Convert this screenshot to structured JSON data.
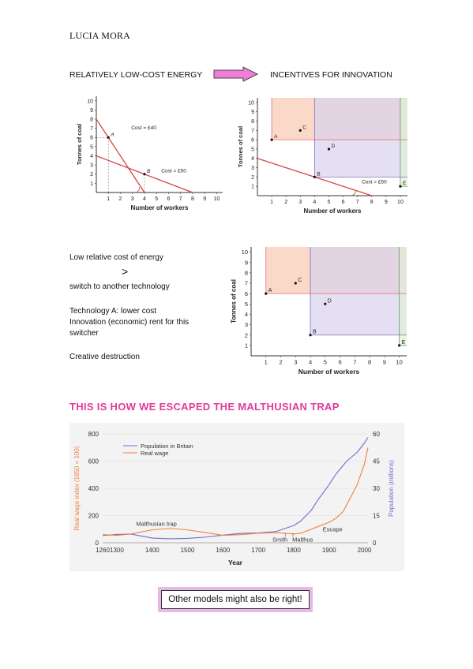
{
  "author": "LUCIA MORA",
  "header": {
    "left_label": "RELATIVELY LOW-COST ENERGY",
    "right_label": "INCENTIVES FOR INNOVATION"
  },
  "notes": {
    "line1": "Low relative cost of energy",
    "symbol": ">",
    "line2": "switch to another technology",
    "line3": "Technology A: lower cost",
    "line4": "Innovation (economic) rent for this",
    "line5": "switcher",
    "line6": "Creative destruction"
  },
  "section_title": "THIS IS HOW WE ESCAPED THE MALTHUSIAN TRAP",
  "callout": "Other models might also be right!",
  "colors": {
    "pink": "#e3399c",
    "arrow": "#f07ed8",
    "isocost": "#d64545",
    "orange_fill": "#f9d2bf",
    "purple_fill": "#d9d2ec",
    "green_fill": "#dff0d6",
    "real_wage": "#f08040",
    "population": "#6f6fd0"
  },
  "chart_data": [
    {
      "type": "line",
      "id": "isocost",
      "xlabel": "Number of workers",
      "ylabel": "Tonnes of coal",
      "xticks": [
        1,
        2,
        3,
        4,
        5,
        6,
        7,
        8,
        9,
        10
      ],
      "yticks": [
        1,
        2,
        3,
        4,
        5,
        6,
        7,
        8,
        9,
        10
      ],
      "xlim": [
        0,
        10.5
      ],
      "ylim": [
        0,
        10.5
      ],
      "lines": [
        {
          "label": "Cost = £40",
          "points": [
            [
              0,
              8
            ],
            [
              4,
              0
            ]
          ]
        },
        {
          "label": "Cost = £50",
          "points": [
            [
              0,
              4
            ],
            [
              8,
              0
            ]
          ]
        }
      ],
      "points": [
        {
          "label": "A",
          "x": 1,
          "y": 6
        },
        {
          "label": "B",
          "x": 4,
          "y": 2
        }
      ]
    },
    {
      "type": "scatter",
      "id": "innovation",
      "xlabel": "Number of workers",
      "ylabel": "Tonnes of coal",
      "xticks": [
        1,
        2,
        3,
        4,
        5,
        6,
        7,
        8,
        9,
        10
      ],
      "yticks": [
        1,
        2,
        3,
        4,
        5,
        6,
        7,
        8,
        9,
        10
      ],
      "xlim": [
        0,
        10.5
      ],
      "ylim": [
        0,
        10.5
      ],
      "line": {
        "label": "Cost = £50",
        "points": [
          [
            0,
            4
          ],
          [
            8,
            0
          ]
        ]
      },
      "points": [
        {
          "label": "A",
          "x": 1,
          "y": 6
        },
        {
          "label": "B",
          "x": 4,
          "y": 2
        },
        {
          "label": "C",
          "x": 3,
          "y": 7
        },
        {
          "label": "D",
          "x": 5,
          "y": 5
        },
        {
          "label": "E",
          "x": 10,
          "y": 1
        }
      ]
    },
    {
      "type": "scatter",
      "id": "dominance",
      "xlabel": "Number of workers",
      "ylabel": "Tonnes of coal",
      "xticks": [
        1,
        2,
        3,
        4,
        5,
        6,
        7,
        8,
        9,
        10
      ],
      "yticks": [
        1,
        2,
        3,
        4,
        5,
        6,
        7,
        8,
        9,
        10
      ],
      "xlim": [
        0,
        10.5
      ],
      "ylim": [
        0,
        10.5
      ],
      "points": [
        {
          "label": "A",
          "x": 1,
          "y": 6
        },
        {
          "label": "B",
          "x": 4,
          "y": 2
        },
        {
          "label": "C",
          "x": 3,
          "y": 7
        },
        {
          "label": "D",
          "x": 5,
          "y": 5
        },
        {
          "label": "E",
          "x": 10,
          "y": 1
        }
      ]
    },
    {
      "type": "line",
      "id": "malthus",
      "xlabel": "Year",
      "ylabel": "Real wage index (1850 = 100)",
      "y2label": "Population (millions)",
      "xlim": [
        1260,
        2010
      ],
      "ylim": [
        0,
        800
      ],
      "y2lim": [
        0,
        60
      ],
      "xticks": [
        1260,
        1300,
        1400,
        1500,
        1600,
        1700,
        1800,
        1900,
        2000
      ],
      "yticks": [
        0,
        200,
        400,
        600,
        800
      ],
      "y2ticks": [
        0,
        15,
        30,
        45,
        60
      ],
      "legend": "top-left",
      "annotations": [
        "Malthusian trap",
        "Smith",
        "Malthus",
        "Escape"
      ],
      "series": [
        {
          "name": "Population in Britain",
          "axis": "right",
          "x": [
            1260,
            1300,
            1340,
            1400,
            1450,
            1500,
            1550,
            1600,
            1650,
            1700,
            1750,
            1800,
            1820,
            1850,
            1870,
            1900,
            1920,
            1950,
            1980,
            2000,
            2010
          ],
          "y": [
            4.0,
            4.6,
            4.8,
            2.6,
            2.2,
            2.4,
            3.1,
            4.2,
            5.2,
            5.4,
            6.2,
            9.5,
            12,
            18,
            24,
            32,
            38,
            45,
            50,
            55,
            58
          ]
        },
        {
          "name": "Real wage",
          "axis": "left",
          "x": [
            1260,
            1300,
            1340,
            1400,
            1450,
            1500,
            1550,
            1600,
            1650,
            1700,
            1750,
            1800,
            1820,
            1850,
            1870,
            1900,
            1920,
            1940,
            1960,
            1980,
            2000,
            2010
          ],
          "y": [
            60,
            55,
            65,
            95,
            105,
            95,
            75,
            55,
            60,
            70,
            75,
            65,
            70,
            100,
            120,
            150,
            180,
            230,
            330,
            430,
            580,
            700
          ]
        }
      ]
    }
  ]
}
